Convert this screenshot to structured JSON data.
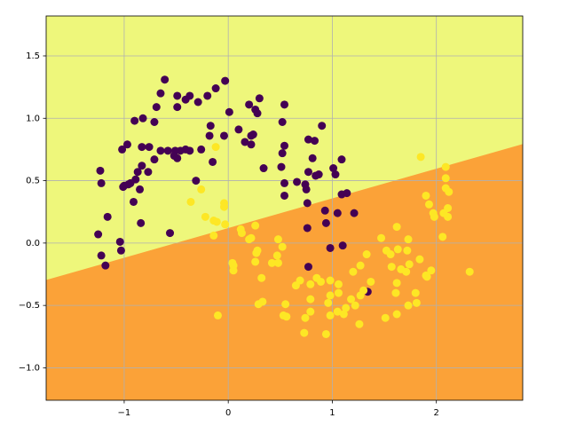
{
  "chart_data": {
    "type": "scatter",
    "xlim": [
      -1.75,
      2.83
    ],
    "ylim": [
      -1.26,
      1.82
    ],
    "xticks": [
      {
        "value": -1,
        "label": "−1"
      },
      0,
      1,
      2
    ],
    "yticks": [
      {
        "value": -1.0,
        "label": "−1.0"
      },
      {
        "value": -0.5,
        "label": "−0.5"
      },
      {
        "value": 0.0,
        "label": "0.0"
      },
      {
        "value": 0.5,
        "label": "0.5"
      },
      {
        "value": 1.0,
        "label": "1.0"
      },
      {
        "value": 1.5,
        "label": "1.5"
      }
    ],
    "grid": true,
    "regions": {
      "upper_color": "#eef77b",
      "lower_color": "#fba238",
      "boundary_x": [
        -1.75,
        2.83
      ],
      "boundary_y": [
        -0.3,
        0.79
      ]
    },
    "series": [
      {
        "color": "#440154",
        "x": [
          -0.61,
          -0.65,
          -0.69,
          -0.82,
          -0.71,
          -0.9,
          -0.97,
          -1.02,
          -0.83,
          -0.76,
          -0.65,
          -0.71,
          -0.83,
          -0.87,
          -0.77,
          -0.89,
          -0.94,
          -0.96,
          -1.0,
          -0.85,
          -1.23,
          -1.22,
          -1.01,
          -0.91,
          -1.16,
          -0.84,
          -1.25,
          -1.04,
          -1.03,
          -1.22,
          -1.18,
          -0.56,
          -0.49,
          -0.37,
          -0.49,
          -0.41,
          -0.29,
          -0.2,
          -0.12,
          -0.03,
          -0.17,
          -0.18,
          -0.26,
          -0.37,
          -0.46,
          -0.51,
          -0.58,
          -0.52,
          -0.49,
          -0.41,
          -0.15,
          -0.04,
          0.01,
          -0.31,
          0.1,
          0.16,
          0.2,
          0.22,
          0.22,
          0.26,
          0.3,
          0.34,
          0.24,
          0.28,
          0.54,
          0.52,
          0.54,
          0.52,
          0.51,
          0.54,
          0.54,
          0.66,
          0.74,
          0.77,
          0.77,
          0.83,
          0.81,
          0.87,
          0.75,
          0.76,
          0.76,
          0.84,
          0.9,
          1.01,
          1.03,
          1.09,
          1.09,
          1.14,
          0.93,
          0.94,
          1.05,
          1.21,
          1.1,
          0.98,
          0.77,
          1.34
        ],
        "y": [
          1.31,
          1.2,
          1.09,
          1.0,
          0.97,
          0.98,
          0.79,
          0.75,
          0.77,
          0.77,
          0.74,
          0.67,
          0.62,
          0.57,
          0.57,
          0.51,
          0.48,
          0.47,
          0.46,
          0.43,
          0.58,
          0.48,
          0.45,
          0.33,
          0.21,
          0.16,
          0.07,
          0.01,
          -0.06,
          -0.1,
          -0.18,
          0.08,
          1.18,
          1.18,
          1.09,
          1.15,
          1.13,
          1.18,
          1.24,
          1.3,
          0.94,
          0.86,
          0.75,
          0.74,
          0.74,
          0.74,
          0.74,
          0.7,
          0.68,
          0.75,
          0.65,
          0.86,
          1.05,
          0.5,
          0.91,
          0.81,
          1.11,
          0.86,
          0.79,
          1.07,
          1.16,
          0.6,
          0.87,
          1.04,
          1.11,
          0.97,
          0.78,
          0.72,
          0.61,
          0.48,
          0.38,
          0.49,
          0.47,
          0.57,
          0.83,
          0.82,
          0.68,
          0.55,
          0.43,
          0.32,
          0.12,
          0.54,
          0.94,
          0.6,
          0.55,
          0.67,
          0.39,
          0.4,
          0.26,
          0.16,
          0.24,
          0.24,
          -0.02,
          -0.04,
          -0.19,
          -0.39
        ]
      },
      {
        "color": "#fde725",
        "x": [
          1.85,
          1.9,
          1.93,
          1.97,
          1.98,
          2.09,
          2.09,
          2.09,
          2.12,
          2.11,
          2.11,
          2.07,
          2.06,
          2.32,
          1.47,
          1.52,
          1.56,
          1.63,
          1.57,
          1.66,
          1.62,
          1.61,
          1.51,
          1.33,
          1.27,
          1.2,
          1.37,
          1.3,
          1.27,
          1.18,
          1.13,
          1.22,
          1.26,
          1.11,
          1.05,
          1.06,
          1.06,
          0.98,
          0.98,
          0.96,
          0.94,
          0.98,
          0.89,
          0.85,
          0.79,
          0.79,
          0.79,
          0.74,
          0.73,
          0.69,
          0.65,
          0.55,
          0.53,
          0.56,
          0.52,
          0.48,
          0.48,
          0.47,
          0.42,
          0.28,
          0.26,
          0.32,
          0.33,
          0.29,
          0.27,
          0.26,
          0.2,
          0.13,
          0.12,
          0.22,
          -0.1,
          0.05,
          0.05,
          0.04,
          -0.04,
          -0.04,
          -0.12,
          -0.14,
          -0.26,
          -0.36,
          -0.22,
          -0.14,
          -0.11,
          -0.03,
          1.62,
          1.73,
          1.72,
          1.74,
          1.71,
          1.84,
          1.9,
          1.8,
          1.81,
          1.91,
          1.95,
          1.73,
          1.62
        ],
        "y": [
          0.69,
          0.38,
          0.31,
          0.24,
          0.21,
          0.61,
          0.52,
          0.44,
          0.41,
          0.28,
          0.21,
          0.24,
          0.05,
          -0.23,
          0.04,
          -0.06,
          -0.09,
          -0.05,
          -0.19,
          -0.21,
          -0.32,
          -0.4,
          -0.6,
          -0.09,
          -0.18,
          -0.23,
          -0.31,
          -0.38,
          -0.42,
          -0.45,
          -0.52,
          -0.5,
          -0.65,
          -0.57,
          -0.55,
          -0.4,
          -0.33,
          -0.3,
          -0.42,
          -0.48,
          -0.73,
          -0.58,
          -0.31,
          -0.28,
          -0.33,
          -0.45,
          -0.55,
          -0.6,
          -0.72,
          -0.3,
          -0.34,
          -0.49,
          -0.58,
          -0.59,
          -0.03,
          0.03,
          -0.16,
          -0.1,
          -0.16,
          -0.06,
          -0.15,
          -0.28,
          -0.47,
          -0.49,
          -0.08,
          0.14,
          0.03,
          0.08,
          0.11,
          0.04,
          -0.58,
          -0.18,
          -0.22,
          -0.16,
          0.32,
          0.29,
          0.77,
          0.18,
          0.43,
          0.33,
          0.21,
          0.06,
          0.17,
          0.15,
          0.13,
          0.03,
          -0.06,
          -0.17,
          -0.23,
          -0.13,
          -0.26,
          -0.4,
          -0.48,
          -0.27,
          -0.22,
          -0.5,
          -0.57
        ]
      }
    ]
  }
}
